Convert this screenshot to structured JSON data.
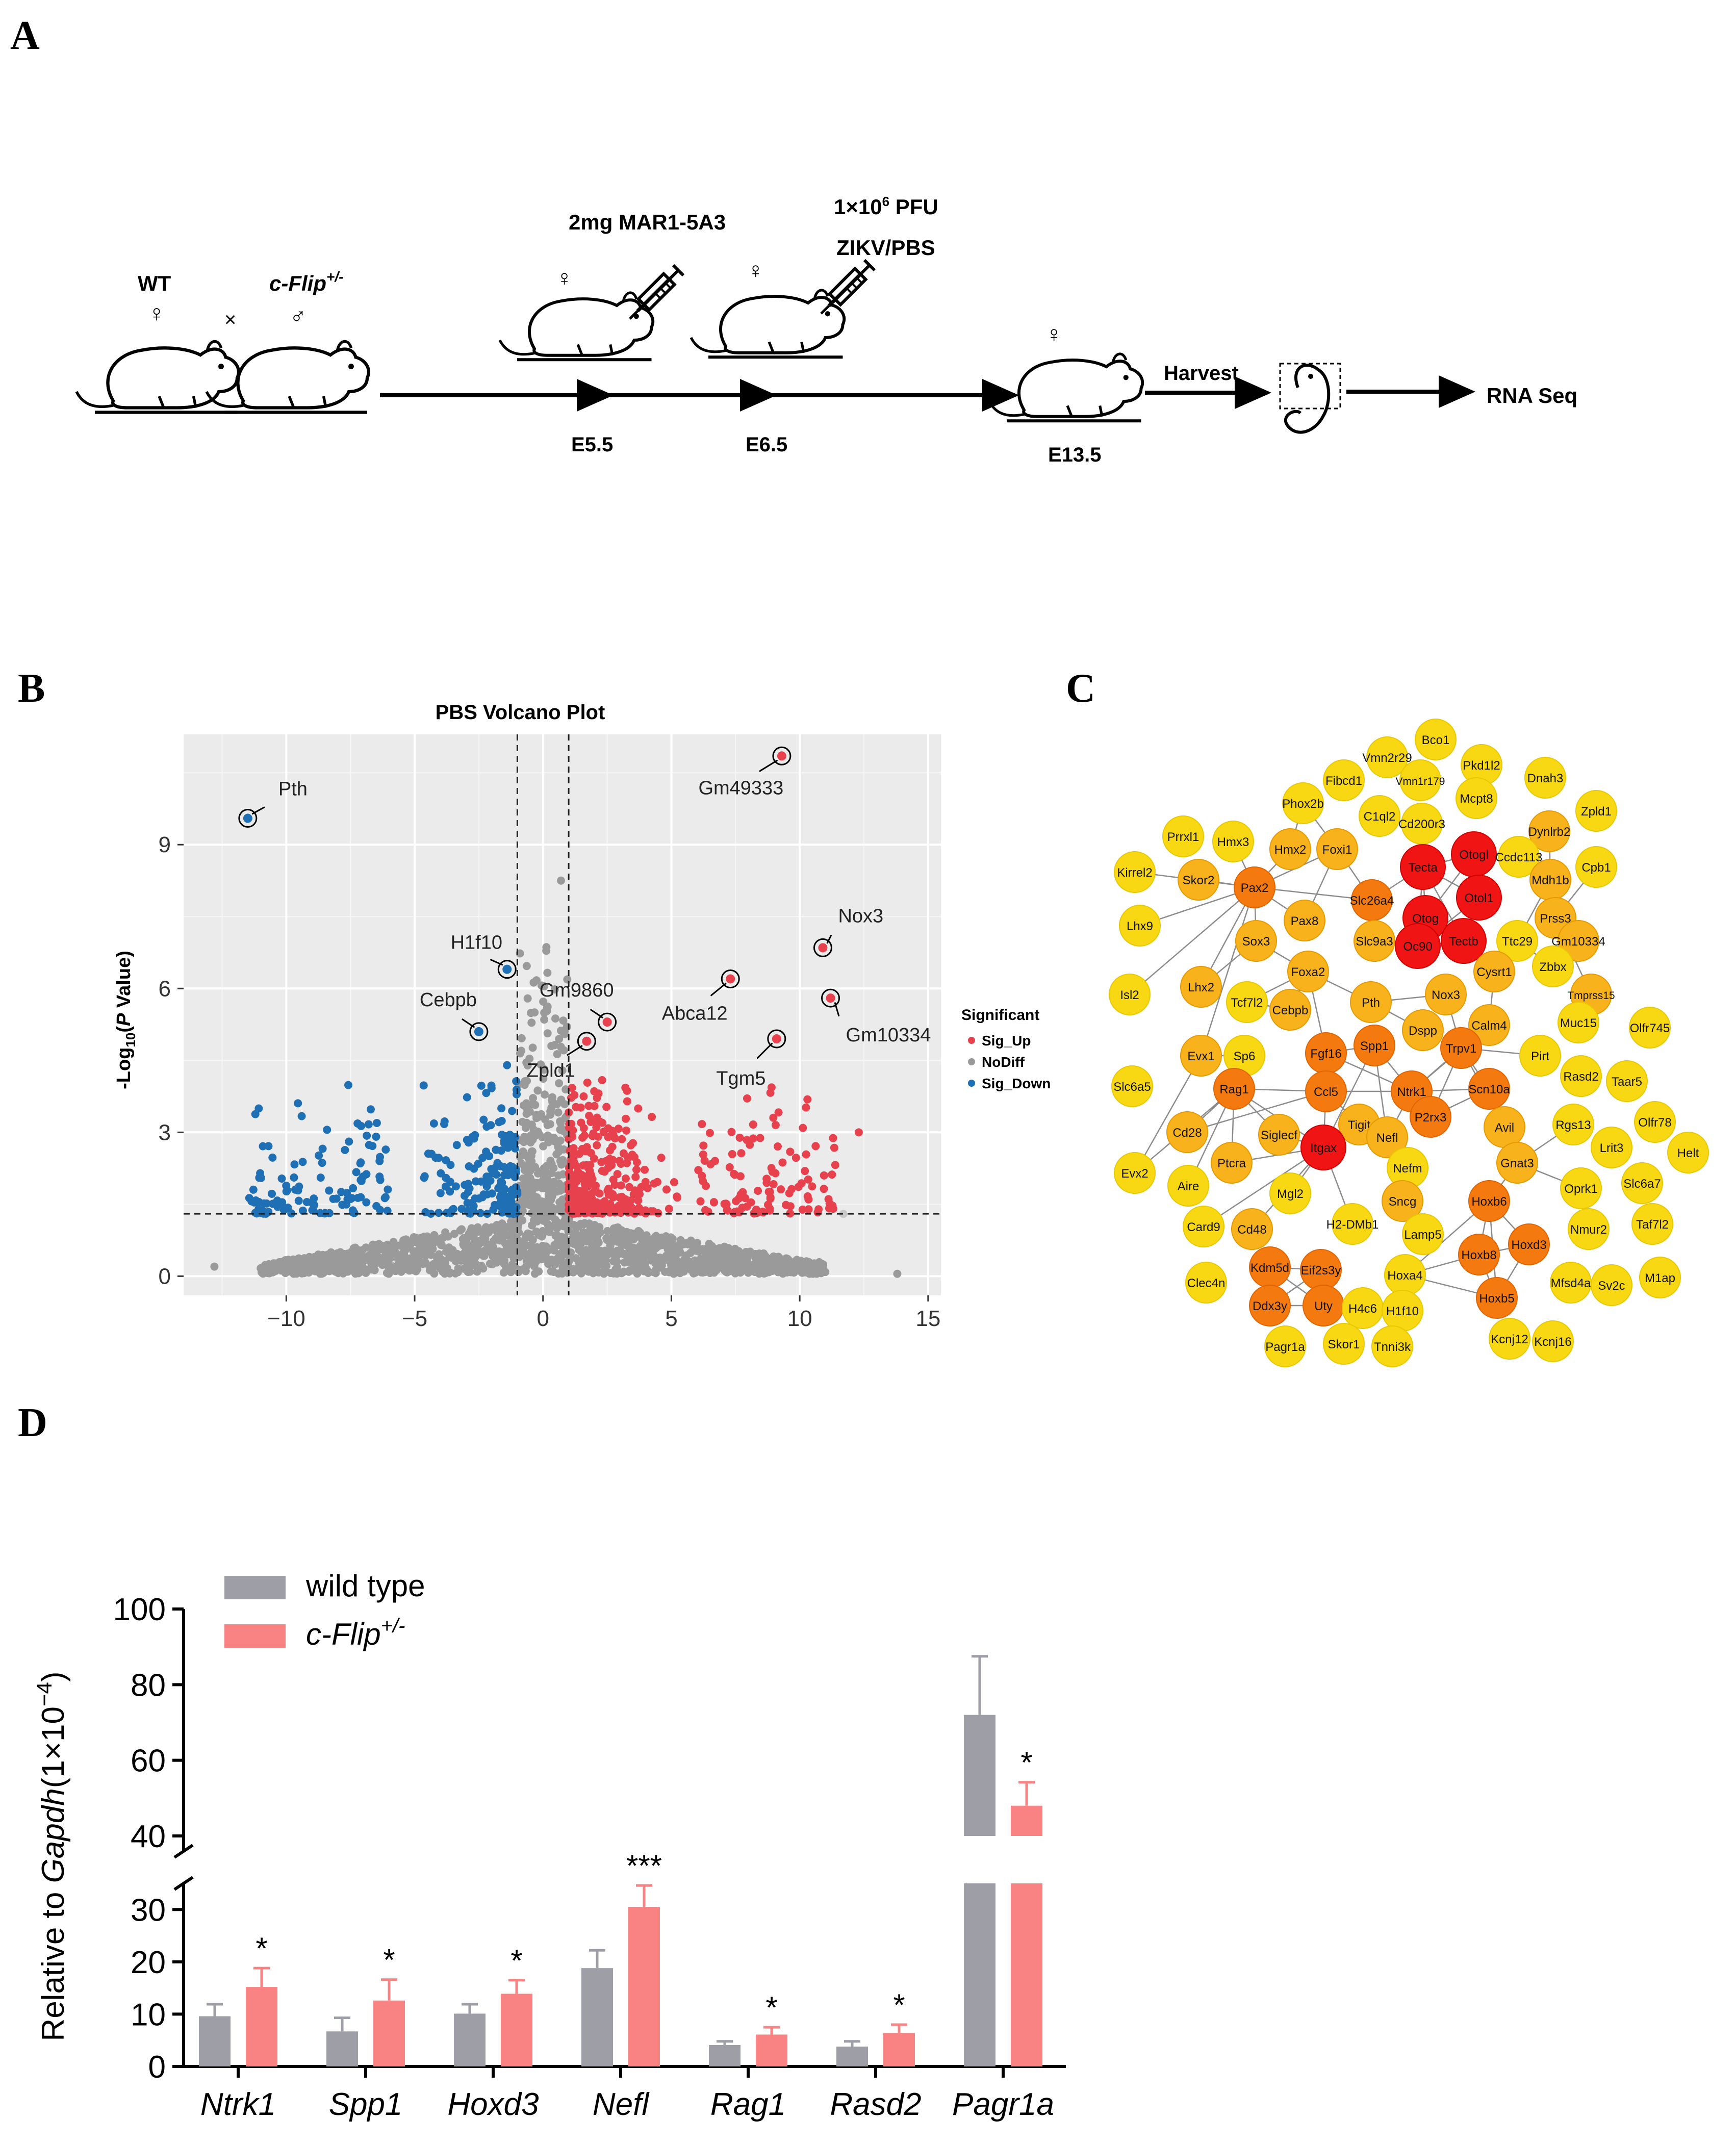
{
  "panels": {
    "a": "A",
    "b": "B",
    "c": "C",
    "d": "D"
  },
  "timeline": {
    "wt": "WT",
    "female_symbol": "♀",
    "male_symbol": "♂",
    "cross": "×",
    "cflip_label": "c-Flip",
    "cflip_sup": "+/-",
    "treatment1": "2mg MAR1-5A3",
    "treatment2_dose": "1×10",
    "treatment2_exp": "6",
    "treatment2_unit": " PFU",
    "treatment2_virus": "ZIKV/PBS",
    "day1": "E5.5",
    "day2": "E6.5",
    "day3": "E13.5",
    "harvest": "Harvest",
    "rnaseq": "RNA Seq"
  },
  "volcano": {
    "title": "PBS Volcano Plot",
    "ylabel_prefix": "-Log",
    "ylabel_sub": "10",
    "ylabel_italic": "P",
    "ylabel_suffix": " Value)",
    "ylabel_open": "(",
    "legend_title": "Significant",
    "legend": [
      {
        "label": "Sig_Up",
        "color": "#e8414e"
      },
      {
        "label": "NoDiff",
        "color": "#9a9a9a"
      },
      {
        "label": "Sig_Down",
        "color": "#1f6fb5"
      }
    ],
    "x_ticks": [
      "−10",
      "−5",
      "0",
      "5",
      "10",
      "15"
    ],
    "y_ticks": [
      "0",
      "3",
      "6",
      "9"
    ],
    "labels": [
      "Pth",
      "Gm49333",
      "Nox3",
      "H1f10",
      "Cebpb",
      "Gm9860",
      "Abca12",
      "Gm10334",
      "Zpld1",
      "Tgm5"
    ]
  },
  "network": {
    "nodes": [
      "Bco1",
      "Vmn2r29",
      "Pkd1l2",
      "Vmn1r179",
      "Fibcd1",
      "Dnah3",
      "Phox2b",
      "Mcpt8",
      "Zpld1",
      "C1ql2",
      "Cd200r3",
      "Dynlrb2",
      "Prrxl1",
      "Hmx3",
      "Hmx2",
      "Foxi1",
      "Otogl",
      "Ccdc113",
      "Cpb1",
      "Kirrel2",
      "Skor2",
      "Pax2",
      "Tecta",
      "Otol1",
      "Mdh1b",
      "Slc26a4",
      "Otog",
      "Prss3",
      "Lhx9",
      "Pax8",
      "Sox3",
      "Slc9a3",
      "Oc90",
      "Tectb",
      "Ttc29",
      "Gm10334",
      "Lhx2",
      "Foxa2",
      "Cysrt1",
      "Zbbx",
      "Isl2",
      "Tcf7l2",
      "Cebpb",
      "Pth",
      "Nox3",
      "Tmprss15",
      "Evx1",
      "Sp6",
      "Dspp",
      "Calm4",
      "Muc15",
      "Olfr745",
      "Fgf16",
      "Spp1",
      "Trpv1",
      "Pirt",
      "Slc6a5",
      "Rag1",
      "Ccl5",
      "Ntrk1",
      "Scn10a",
      "Rasd2",
      "Taar5",
      "Cd28",
      "Tigit",
      "P2rx3",
      "Avil",
      "Rgs13",
      "Olfr78",
      "Siglecf",
      "Nefl",
      "Lrit3",
      "Evx2",
      "Itgax",
      "Nefm",
      "Gnat3",
      "Helt",
      "Aire",
      "Ptcra",
      "Mgl2",
      "Oprk1",
      "Slc6a7",
      "Sncg",
      "Hoxb6",
      "Card9",
      "Cd48",
      "H2-DMb1",
      "Lamp5",
      "Nmur2",
      "Taf7l2",
      "Hoxd3",
      "Kdm5d",
      "Eif2s3y",
      "Hoxb8",
      "Clec4n",
      "Hoxa4",
      "Mfsd4a",
      "Sv2c",
      "M1ap",
      "Ddx3y",
      "Uty",
      "H4c6",
      "H1f10",
      "Hoxb5",
      "Kcnj12",
      "Kcnj16",
      "Pagr1a",
      "Skor1",
      "Tnni3k"
    ]
  },
  "chart_data": [
    {
      "type": "scatter",
      "title": "PBS Volcano Plot",
      "xlabel": "",
      "ylabel": "-Log10(P Value)",
      "xlim": [
        -14,
        15.5
      ],
      "ylim": [
        -0.4,
        11.3
      ],
      "thresholds": {
        "log2fc": [
          -1,
          1
        ],
        "neg_log10_p": 1.3
      },
      "series": [
        {
          "name": "Sig_Up",
          "color": "#e8414e"
        },
        {
          "name": "NoDiff",
          "color": "#9a9a9a"
        },
        {
          "name": "Sig_Down",
          "color": "#1f6fb5"
        }
      ],
      "highlighted": [
        {
          "label": "Pth",
          "x": -11.5,
          "y": 9.55,
          "group": "Sig_Down"
        },
        {
          "label": "Gm49333",
          "x": 9.3,
          "y": 10.85,
          "group": "Sig_Up"
        },
        {
          "label": "Nox3",
          "x": 10.9,
          "y": 6.85,
          "group": "Sig_Up"
        },
        {
          "label": "H1f10",
          "x": -1.4,
          "y": 6.4,
          "group": "Sig_Down"
        },
        {
          "label": "Cebpb",
          "x": -2.5,
          "y": 5.1,
          "group": "Sig_Down"
        },
        {
          "label": "Gm9860",
          "x": 2.5,
          "y": 5.3,
          "group": "Sig_Up"
        },
        {
          "label": "Abca12",
          "x": 7.3,
          "y": 6.2,
          "group": "Sig_Up"
        },
        {
          "label": "Gm10334",
          "x": 11.2,
          "y": 5.8,
          "group": "Sig_Up"
        },
        {
          "label": "Zpld1",
          "x": 1.7,
          "y": 4.9,
          "group": "Sig_Up"
        },
        {
          "label": "Tgm5",
          "x": 9.1,
          "y": 4.95,
          "group": "Sig_Up"
        }
      ]
    },
    {
      "type": "bar",
      "title": "",
      "xlabel": "",
      "ylabel": "Relative to Gapdh(1×10−4)",
      "ylabel_parts": {
        "prefix": "Relative to ",
        "italic": "Gapdh",
        "suffix": "(1×10",
        "exp": "−4",
        "close": ")"
      },
      "axis_break": {
        "lower": [
          0,
          35
        ],
        "upper": [
          35,
          100
        ]
      },
      "lower_ticks": [
        "0",
        "10",
        "20",
        "30"
      ],
      "upper_ticks": [
        "40",
        "60",
        "80",
        "100"
      ],
      "categories": [
        "Ntrk1",
        "Spp1",
        "Hoxd3",
        "Nefl",
        "Rag1",
        "Rasd2",
        "Pagr1a"
      ],
      "series": [
        {
          "name": "wild type",
          "color": "#9e9ea6",
          "values": [
            9.6,
            6.7,
            10.1,
            18.8,
            4.1,
            3.8,
            72.0
          ],
          "errors": [
            2.3,
            2.6,
            1.8,
            3.4,
            0.7,
            1.0,
            15.5
          ]
        },
        {
          "name": "c-Flip+/-",
          "name_main": "c-Flip",
          "name_sup": "+/-",
          "color": "#f98282",
          "values": [
            15.2,
            12.6,
            13.9,
            30.5,
            6.1,
            6.4,
            48.0
          ],
          "errors": [
            3.6,
            4.0,
            2.6,
            4.1,
            1.4,
            1.6,
            6.2
          ]
        }
      ],
      "significance": [
        "*",
        "*",
        "*",
        "***",
        "*",
        "*",
        "*"
      ]
    }
  ]
}
